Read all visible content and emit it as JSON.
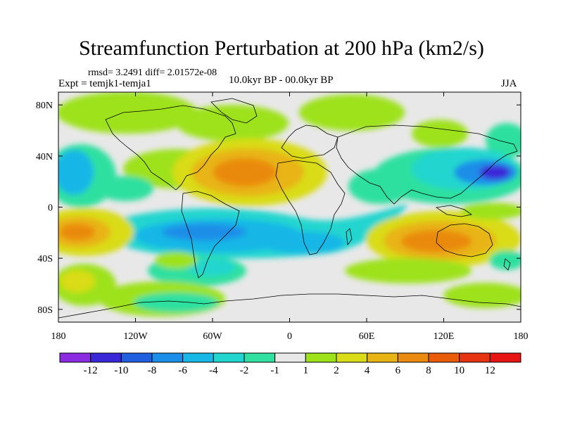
{
  "title": "Streamfunction Perturbation at 200 hPa (km2/s)",
  "stats": "rmsd= 3.2491 diff= 2.01572e-08",
  "experiment": "Expt = temjk1-temja1",
  "period": "10.0kyr BP - 00.0kyr BP",
  "season": "JJA",
  "lat_ticks": [
    "80N",
    "40N",
    "0",
    "40S",
    "80S"
  ],
  "lon_ticks": [
    "180",
    "120W",
    "60W",
    "0",
    "60E",
    "120E",
    "180"
  ],
  "colorbar": {
    "labels": [
      "-12",
      "-10",
      "-8",
      "-6",
      "-4",
      "-2",
      "-1",
      "1",
      "2",
      "4",
      "6",
      "8",
      "10",
      "12"
    ],
    "colors": [
      "#8a2be2",
      "#3a28d8",
      "#1f5fe0",
      "#1a8ee8",
      "#17b7e6",
      "#22d6cf",
      "#2fe0a0",
      "#e8e8e8",
      "#9ee21a",
      "#d9dc17",
      "#e8b414",
      "#ea8a10",
      "#e85c0a",
      "#e63410",
      "#e81414"
    ]
  },
  "colors": {
    "background_field": "#e8e8e8",
    "coastline": "#000000"
  }
}
